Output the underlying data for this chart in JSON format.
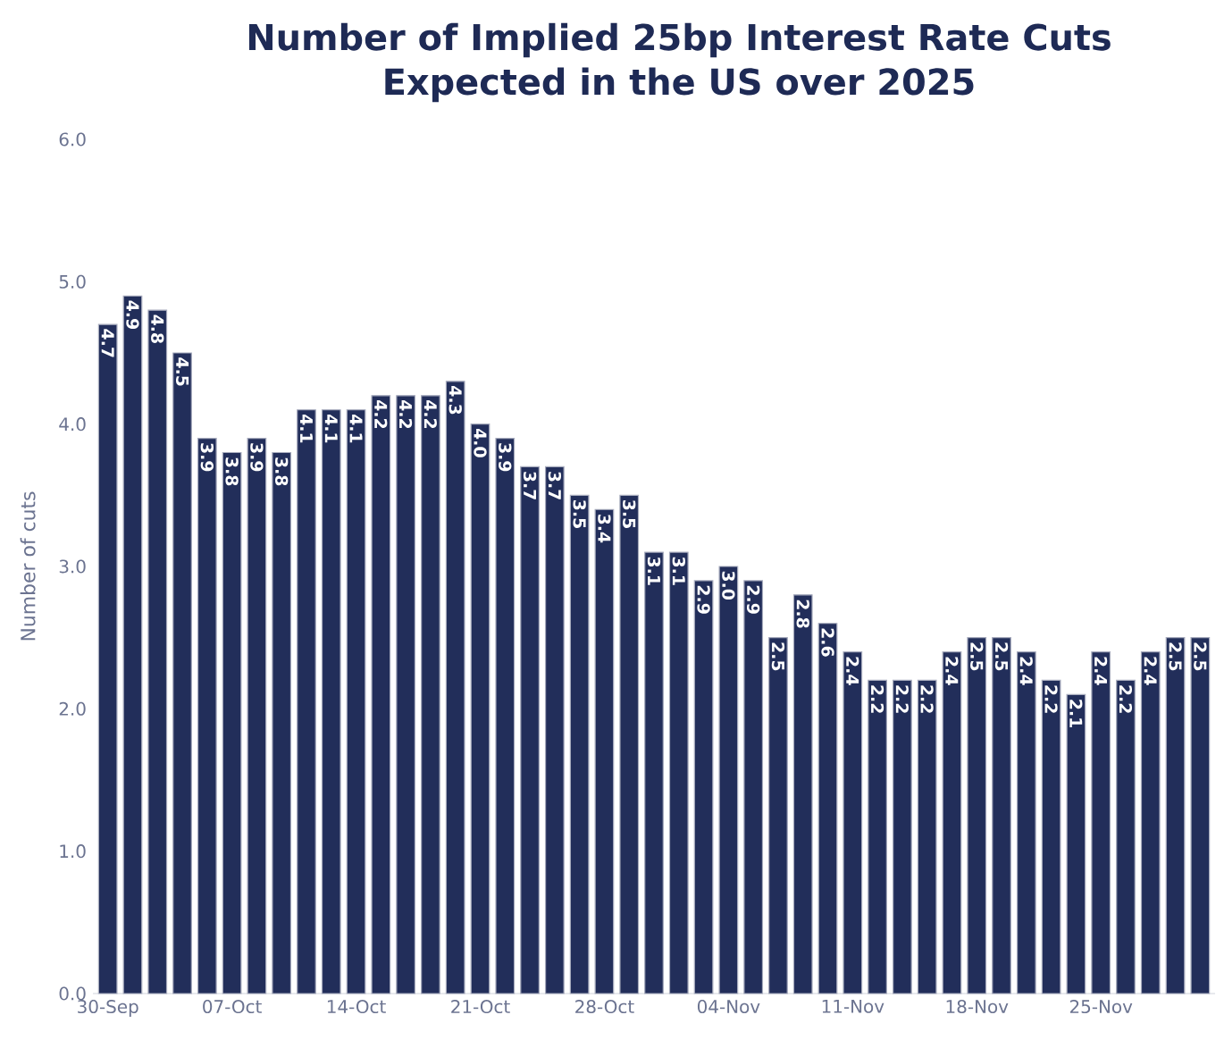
{
  "chart_data": {
    "type": "bar",
    "title": "Number of Implied 25bp Interest Rate Cuts\nExpected in the US over 2025",
    "ylabel": "Number of cuts",
    "categories": [
      "30-Sep",
      null,
      null,
      null,
      null,
      "07-Oct",
      null,
      null,
      null,
      null,
      "14-Oct",
      null,
      null,
      null,
      null,
      "21-Oct",
      null,
      null,
      null,
      null,
      "28-Oct",
      null,
      null,
      null,
      null,
      "04-Nov",
      null,
      null,
      null,
      null,
      "11-Nov",
      null,
      null,
      null,
      null,
      "18-Nov",
      null,
      null,
      null,
      null,
      "25-Nov",
      null,
      null,
      null,
      null
    ],
    "values": [
      4.7,
      4.9,
      4.8,
      4.5,
      3.9,
      3.8,
      3.9,
      3.8,
      4.1,
      4.1,
      4.1,
      4.2,
      4.2,
      4.2,
      4.3,
      4.0,
      3.9,
      3.7,
      3.7,
      3.5,
      3.4,
      3.5,
      3.1,
      3.1,
      2.9,
      3.0,
      2.9,
      2.5,
      2.8,
      2.6,
      2.4,
      2.2,
      2.2,
      2.2,
      2.4,
      2.5,
      2.5,
      2.4,
      2.2,
      2.1,
      2.4,
      2.2,
      2.4,
      2.5,
      2.5
    ],
    "value_labels": [
      "4.7",
      "4.9",
      "4.8",
      "4.5",
      "3.9",
      "3.8",
      "3.9",
      "3.8",
      "4.1",
      "4.1",
      "4.1",
      "4.2",
      "4.2",
      "4.2",
      "4.3",
      "4.0",
      "3.9",
      "3.7",
      "3.7",
      "3.5",
      "3.4",
      "3.5",
      "3.1",
      "3.1",
      "2.9",
      "3.0",
      "2.9",
      "2.5",
      "2.8",
      "2.6",
      "2.4",
      "2.2",
      "2.2",
      "2.2",
      "2.4",
      "2.5",
      "2.5",
      "2.4",
      "2.2",
      "2.1",
      "2.4",
      "2.2",
      "2.4",
      "2.5",
      "2.5"
    ],
    "color": "#222e5a",
    "ylim": [
      0,
      6
    ],
    "yticks": [
      {
        "value": 0,
        "label": "0.0"
      },
      {
        "value": 1,
        "label": "1.0"
      },
      {
        "value": 2,
        "label": "2.0"
      },
      {
        "value": 3,
        "label": "3.0"
      },
      {
        "value": 4,
        "label": "4.0"
      },
      {
        "value": 5,
        "label": "5.0"
      },
      {
        "value": 6,
        "label": "6.0"
      }
    ]
  }
}
